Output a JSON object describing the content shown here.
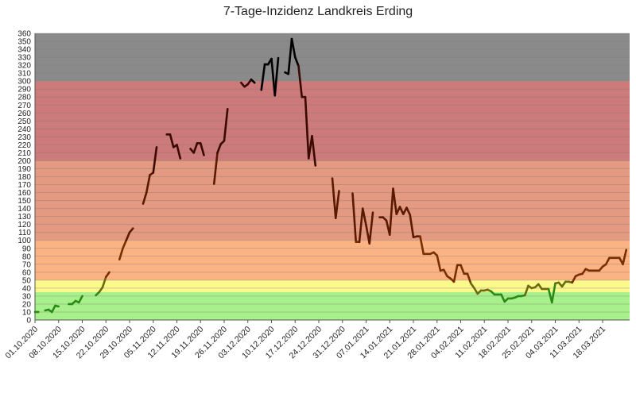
{
  "chart_data": {
    "type": "line",
    "title": "7-Tage-Inzidenz Landkreis Erding",
    "xlabel": "",
    "ylabel": "",
    "ylim": [
      0,
      360
    ],
    "ytick_step": 10,
    "grid": true,
    "x_start": "01.10.2020",
    "x_end": "26.03.2021",
    "x_ticks": [
      "01.10.2020",
      "08.10.2020",
      "15.10.2020",
      "22.10.2020",
      "29.10.2020",
      "05.11.2020",
      "12.11.2020",
      "19.11.2020",
      "26.11.2020",
      "03.12.2020",
      "10.12.2020",
      "17.12.2020",
      "24.12.2020",
      "31.12.2020",
      "07.01.2021",
      "14.01.2021",
      "21.01.2021",
      "28.01.2021",
      "04.02.2021",
      "11.02.2021",
      "18.02.2021",
      "25.02.2021",
      "04.03.2021",
      "11.03.2021",
      "18.03.2021"
    ],
    "bands": [
      {
        "from": 0,
        "to": 35,
        "color": "#a8f08c"
      },
      {
        "from": 35,
        "to": 50,
        "color": "#fbf98c"
      },
      {
        "from": 50,
        "to": 100,
        "color": "#fbb383"
      },
      {
        "from": 100,
        "to": 200,
        "color": "#e49a80"
      },
      {
        "from": 200,
        "to": 300,
        "color": "#cc7a7a"
      },
      {
        "from": 300,
        "to": 360,
        "color": "#8a8a8a"
      }
    ],
    "segments": [
      [
        [
          "01.10.2020",
          10
        ],
        [
          "02.10.2020",
          10
        ]
      ],
      [
        [
          "04.10.2020",
          12
        ],
        [
          "05.10.2020",
          13
        ],
        [
          "06.10.2020",
          10
        ],
        [
          "07.10.2020",
          18
        ],
        [
          "08.10.2020",
          17
        ]
      ],
      [
        [
          "11.10.2020",
          20
        ],
        [
          "12.10.2020",
          20
        ],
        [
          "13.10.2020",
          24
        ],
        [
          "14.10.2020",
          22
        ],
        [
          "15.10.2020",
          30
        ]
      ],
      [
        [
          "19.10.2020",
          31
        ],
        [
          "20.10.2020",
          35
        ],
        [
          "21.10.2020",
          41
        ],
        [
          "22.10.2020",
          54
        ],
        [
          "23.10.2020",
          60
        ]
      ],
      [
        [
          "26.10.2020",
          76
        ],
        [
          "27.10.2020",
          90
        ],
        [
          "28.10.2020",
          100
        ],
        [
          "29.10.2020",
          110
        ],
        [
          "30.10.2020",
          115
        ]
      ],
      [
        [
          "02.11.2020",
          146
        ],
        [
          "03.11.2020",
          160
        ],
        [
          "04.11.2020",
          182
        ],
        [
          "05.11.2020",
          185
        ],
        [
          "06.11.2020",
          217
        ]
      ],
      [
        [
          "09.11.2020",
          233
        ],
        [
          "10.11.2020",
          233
        ],
        [
          "11.11.2020",
          217
        ],
        [
          "12.11.2020",
          220
        ],
        [
          "13.11.2020",
          203
        ]
      ],
      [
        [
          "16.11.2020",
          215
        ],
        [
          "17.11.2020",
          210
        ],
        [
          "18.11.2020",
          222
        ],
        [
          "19.11.2020",
          222
        ],
        [
          "20.11.2020",
          207
        ]
      ],
      [
        [
          "23.11.2020",
          171
        ],
        [
          "24.11.2020",
          210
        ],
        [
          "25.11.2020",
          221
        ],
        [
          "26.11.2020",
          225
        ],
        [
          "27.11.2020",
          265
        ]
      ],
      [
        [
          "01.12.2020",
          298
        ],
        [
          "02.12.2020",
          293
        ],
        [
          "03.12.2020",
          296
        ],
        [
          "04.12.2020",
          302
        ],
        [
          "05.12.2020",
          298
        ]
      ],
      [
        [
          "07.12.2020",
          289
        ],
        [
          "08.12.2020",
          321
        ],
        [
          "09.12.2020",
          321
        ],
        [
          "10.12.2020",
          328
        ],
        [
          "11.12.2020",
          282
        ],
        [
          "12.12.2020",
          329
        ]
      ],
      [
        [
          "14.12.2020",
          311
        ],
        [
          "15.12.2020",
          309
        ],
        [
          "16.12.2020",
          353
        ],
        [
          "17.12.2020",
          330
        ],
        [
          "18.12.2020",
          319
        ],
        [
          "19.12.2020",
          280
        ],
        [
          "20.12.2020",
          280
        ],
        [
          "21.12.2020",
          203
        ],
        [
          "22.12.2020",
          231
        ],
        [
          "23.12.2020",
          194
        ]
      ],
      [
        [
          "28.12.2020",
          178
        ],
        [
          "29.12.2020",
          128
        ],
        [
          "30.12.2020",
          162
        ]
      ],
      [
        [
          "03.01.2021",
          159
        ],
        [
          "04.01.2021",
          98
        ],
        [
          "05.01.2021",
          98
        ],
        [
          "06.01.2021",
          140
        ],
        [
          "07.01.2021",
          119
        ],
        [
          "08.01.2021",
          96
        ],
        [
          "09.01.2021",
          135
        ]
      ],
      [
        [
          "11.01.2021",
          129
        ],
        [
          "12.01.2021",
          129
        ],
        [
          "13.01.2021",
          125
        ],
        [
          "14.01.2021",
          107
        ],
        [
          "15.01.2021",
          165
        ],
        [
          "16.01.2021",
          133
        ],
        [
          "17.01.2021",
          142
        ],
        [
          "18.01.2021",
          133
        ],
        [
          "19.01.2021",
          141
        ],
        [
          "20.01.2021",
          132
        ],
        [
          "21.01.2021",
          104
        ],
        [
          "22.01.2021",
          105
        ],
        [
          "23.01.2021",
          105
        ],
        [
          "24.01.2021",
          83
        ],
        [
          "25.01.2021",
          83
        ],
        [
          "26.01.2021",
          83
        ],
        [
          "27.01.2021",
          85
        ],
        [
          "28.01.2021",
          81
        ],
        [
          "29.01.2021",
          62
        ],
        [
          "30.01.2021",
          63
        ],
        [
          "31.01.2021",
          55
        ],
        [
          "01.02.2021",
          52
        ],
        [
          "02.02.2021",
          48
        ],
        [
          "03.02.2021",
          69
        ],
        [
          "04.02.2021",
          69
        ],
        [
          "05.02.2021",
          58
        ],
        [
          "06.02.2021",
          58
        ],
        [
          "07.02.2021",
          46
        ],
        [
          "08.02.2021",
          40
        ],
        [
          "09.02.2021",
          33
        ],
        [
          "10.02.2021",
          37
        ],
        [
          "11.02.2021",
          37
        ],
        [
          "12.02.2021",
          38
        ],
        [
          "13.02.2021",
          36
        ],
        [
          "14.02.2021",
          32
        ],
        [
          "15.02.2021",
          32
        ],
        [
          "16.02.2021",
          32
        ],
        [
          "17.02.2021",
          23
        ],
        [
          "18.02.2021",
          27
        ],
        [
          "19.02.2021",
          27
        ],
        [
          "20.02.2021",
          28
        ],
        [
          "21.02.2021",
          30
        ],
        [
          "22.02.2021",
          30
        ],
        [
          "23.02.2021",
          31
        ],
        [
          "24.02.2021",
          43
        ],
        [
          "25.02.2021",
          40
        ],
        [
          "26.02.2021",
          41
        ],
        [
          "27.02.2021",
          45
        ],
        [
          "28.02.2021",
          39
        ],
        [
          "01.03.2021",
          39
        ],
        [
          "02.03.2021",
          39
        ],
        [
          "03.03.2021",
          22
        ],
        [
          "04.03.2021",
          46
        ],
        [
          "05.03.2021",
          47
        ],
        [
          "06.03.2021",
          42
        ],
        [
          "07.03.2021",
          48
        ],
        [
          "08.03.2021",
          48
        ],
        [
          "09.03.2021",
          47
        ],
        [
          "10.03.2021",
          55
        ],
        [
          "11.03.2021",
          57
        ],
        [
          "12.03.2021",
          58
        ],
        [
          "13.03.2021",
          64
        ],
        [
          "14.03.2021",
          62
        ],
        [
          "15.03.2021",
          62
        ],
        [
          "16.03.2021",
          62
        ],
        [
          "17.03.2021",
          62
        ],
        [
          "18.03.2021",
          67
        ],
        [
          "19.03.2021",
          70
        ],
        [
          "20.03.2021",
          78
        ],
        [
          "21.03.2021",
          78
        ],
        [
          "22.03.2021",
          78
        ],
        [
          "23.03.2021",
          78
        ],
        [
          "24.03.2021",
          70
        ],
        [
          "25.03.2021",
          88
        ]
      ]
    ]
  }
}
